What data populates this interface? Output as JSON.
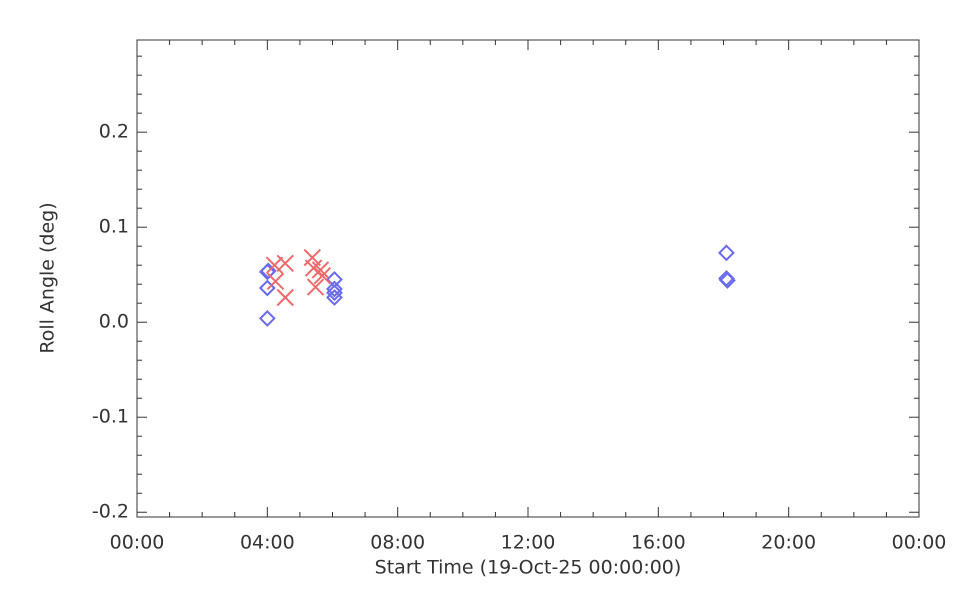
{
  "chart_data": {
    "type": "scatter",
    "x_label": "Start Time (19-Oct-25 00:00:00)",
    "y_label": "Roll Angle (deg)",
    "xlim": [
      0,
      24
    ],
    "xticks": [
      {
        "value": 0,
        "label": "00:00"
      },
      {
        "value": 4,
        "label": "04:00"
      },
      {
        "value": 8,
        "label": "08:00"
      },
      {
        "value": 12,
        "label": "12:00"
      },
      {
        "value": 16,
        "label": "16:00"
      },
      {
        "value": 20,
        "label": "20:00"
      },
      {
        "value": 24,
        "label": "00:00"
      }
    ],
    "ylim": [
      -0.205,
      0.297
    ],
    "yticks": [
      -0.2,
      -0.1,
      {
        "value": 0,
        "label": "0.0"
      },
      0.1,
      0.2
    ],
    "series": [
      {
        "marker": "diamond",
        "color": "#6a6aee",
        "x": [
          4.0,
          4.03,
          4.0,
          4.0,
          6.06,
          6.06,
          6.06,
          6.06,
          18.09,
          18.09,
          18.12
        ],
        "values": [
          0.053,
          0.054,
          0.036,
          0.004,
          0.045,
          0.035,
          0.031,
          0.026,
          0.073,
          0.046,
          0.044
        ]
      },
      {
        "marker": "x",
        "color": "#ee6a6a",
        "x": [
          4.22,
          4.55,
          4.25,
          4.55,
          5.38,
          5.42,
          5.63,
          5.48,
          5.69
        ],
        "values": [
          0.06,
          0.062,
          0.043,
          0.026,
          0.068,
          0.057,
          0.055,
          0.037,
          0.049
        ]
      }
    ]
  }
}
